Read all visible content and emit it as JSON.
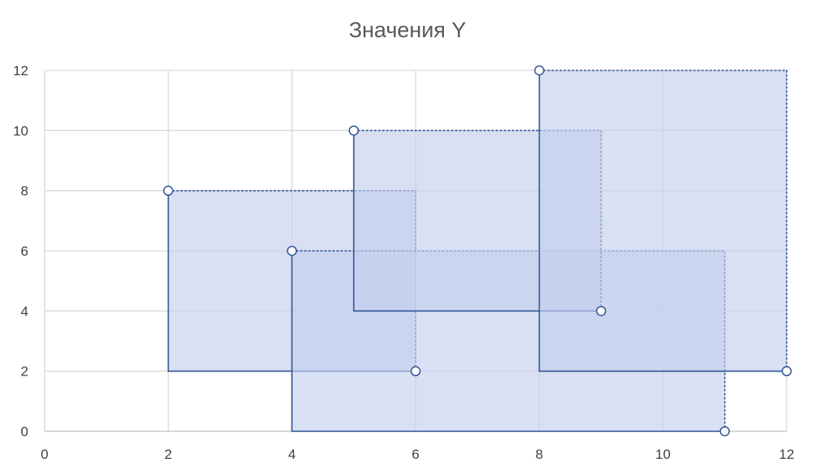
{
  "chart_data": {
    "type": "scatter",
    "title": "Значения Y",
    "xlim": [
      0,
      12
    ],
    "ylim": [
      0,
      12
    ],
    "x_ticks": [
      0,
      2,
      4,
      6,
      8,
      10,
      12
    ],
    "y_ticks": [
      0,
      2,
      4,
      6,
      8,
      10,
      12
    ],
    "grid": true,
    "legend": "none",
    "marker_style": "circle-open",
    "rectangles": [
      {
        "x1": 2,
        "y1": 8,
        "x2": 6,
        "y2": 2
      },
      {
        "x1": 4,
        "y1": 6,
        "x2": 11,
        "y2": 0
      },
      {
        "x1": 5,
        "y1": 10,
        "x2": 9,
        "y2": 4
      },
      {
        "x1": 8,
        "y1": 12,
        "x2": 12,
        "y2": 2
      }
    ],
    "points": [
      {
        "x": 2,
        "y": 8
      },
      {
        "x": 4,
        "y": 6
      },
      {
        "x": 5,
        "y": 10
      },
      {
        "x": 8,
        "y": 12
      },
      {
        "x": 6,
        "y": 2
      },
      {
        "x": 11,
        "y": 0
      },
      {
        "x": 9,
        "y": 4
      },
      {
        "x": 12,
        "y": 2
      }
    ],
    "colors": {
      "fill": "#c5d0ec",
      "stroke": "#2f5597",
      "marker_fill": "#ffffff",
      "grid": "#d9d9d9",
      "axis": "#bfbfbf",
      "text": "#595959"
    }
  }
}
